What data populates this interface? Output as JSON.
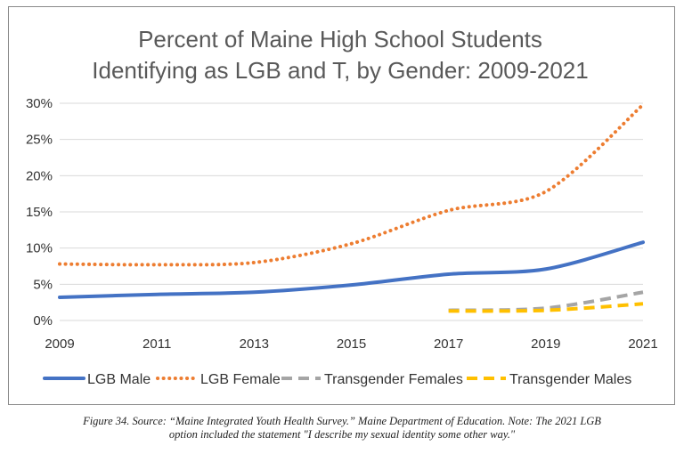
{
  "chart_data": {
    "type": "line",
    "title": [
      "Percent of Maine High School Students",
      "Identifying as LGB and T, by Gender: 2009-2021"
    ],
    "xlabel": "",
    "ylabel": "",
    "x": [
      2009,
      2011,
      2013,
      2015,
      2017,
      2019,
      2021
    ],
    "x_ticks": [
      "2009",
      "2011",
      "2013",
      "2015",
      "2017",
      "2019",
      "2021"
    ],
    "y_ticks": [
      "0%",
      "5%",
      "10%",
      "15%",
      "20%",
      "25%",
      "30%"
    ],
    "ylim": [
      0,
      30
    ],
    "grid": "horizontal",
    "legend_position": "bottom",
    "series": [
      {
        "name": "LGB Male",
        "style": "solid",
        "color": "#4472C4",
        "x": [
          2009,
          2011,
          2013,
          2015,
          2017,
          2019,
          2021
        ],
        "values": [
          3.2,
          3.6,
          3.9,
          4.9,
          6.4,
          7.1,
          10.8
        ]
      },
      {
        "name": "LGB Female",
        "style": "dotted",
        "color": "#ED7D31",
        "x": [
          2009,
          2011,
          2013,
          2015,
          2017,
          2019,
          2021
        ],
        "values": [
          7.8,
          7.7,
          8.0,
          10.6,
          15.2,
          17.8,
          29.8
        ]
      },
      {
        "name": "Transgender Females",
        "style": "dashed",
        "color": "#A5A5A5",
        "x": [
          2017,
          2019,
          2021
        ],
        "values": [
          1.4,
          1.7,
          3.9
        ]
      },
      {
        "name": "Transgender Males",
        "style": "dashed",
        "color": "#FFC000",
        "x": [
          2017,
          2019,
          2021
        ],
        "values": [
          1.3,
          1.4,
          2.3
        ]
      }
    ]
  },
  "caption": {
    "line1": "Figure 34. Source: “Maine Integrated Youth Health Survey.” Maine Department of Education. Note: The 2021 LGB",
    "line2": "option included the statement \"I describe my sexual identity some other way.\""
  }
}
